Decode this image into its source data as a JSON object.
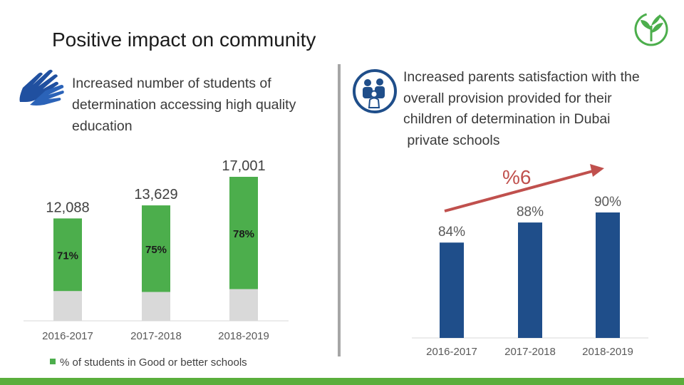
{
  "title": "Positive impact on community",
  "left_text": [
    "Increased number of students of",
    "determination accessing high quality",
    "education"
  ],
  "right_text": [
    "Increased parents satisfaction with the",
    "overall provision provided for their",
    "children of determination in Dubai",
    " private schools"
  ],
  "colors": {
    "green": "#4cae4c",
    "gray": "#d9d9d9",
    "navy": "#1f4e8a",
    "red_arrow": "#c0504d",
    "footer": "#5aae3c"
  },
  "icons": {
    "left": "hand-icon",
    "middle": "family-icon",
    "logo": "sprout-logo-icon"
  },
  "chart_data": [
    {
      "type": "bar",
      "stacked": true,
      "categories": [
        "2016-2017",
        "2017-2018",
        "2018-2019"
      ],
      "totals": [
        12088,
        13629,
        17001
      ],
      "total_labels": [
        "12,088",
        "13,629",
        "17,001"
      ],
      "series": [
        {
          "name": "% of students in Good or better schools",
          "values": [
            0.71,
            0.75,
            0.78
          ],
          "labels": [
            "71%",
            "75%",
            "78%"
          ]
        }
      ],
      "legend_position": "bottom-left",
      "grid": false
    },
    {
      "type": "bar",
      "categories": [
        "2016-2017",
        "2017-2018",
        "2018-2019"
      ],
      "values": [
        84,
        88,
        90
      ],
      "labels": [
        "84%",
        "88%",
        "90%"
      ],
      "annotation": "%6",
      "grid": false
    }
  ]
}
